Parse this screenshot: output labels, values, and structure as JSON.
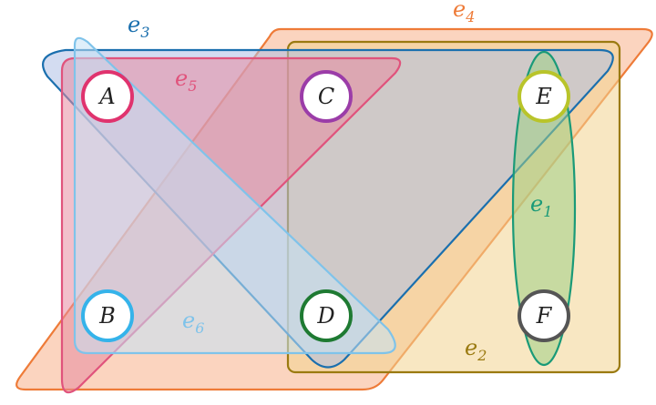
{
  "hyperedges": {
    "e1": {
      "name": "e",
      "sub": "1",
      "color": "#1a9a78",
      "fill": "#9fcf86"
    },
    "e2": {
      "name": "e",
      "sub": "2",
      "color": "#9a7a10",
      "fill": "#f2d490"
    },
    "e3": {
      "name": "e",
      "sub": "3",
      "color": "#1a6fae",
      "fill": "#aebfe6"
    },
    "e4": {
      "name": "e",
      "sub": "4",
      "color": "#ee7b38",
      "fill": "#f7b08a"
    },
    "e5": {
      "name": "e",
      "sub": "5",
      "color": "#e0537c",
      "fill": "#e88aa0"
    },
    "e6": {
      "name": "e",
      "sub": "6",
      "color": "#7fc3ea",
      "fill": "#c5e2f5"
    }
  },
  "nodes": {
    "A": {
      "label": "A",
      "color": "#e0336e"
    },
    "B": {
      "label": "B",
      "color": "#35b3ea"
    },
    "C": {
      "label": "C",
      "color": "#9b3ca8"
    },
    "D": {
      "label": "D",
      "color": "#1e7a32"
    },
    "E": {
      "label": "E",
      "color": "#b9c42a"
    },
    "F": {
      "label": "F",
      "color": "#555555"
    }
  }
}
